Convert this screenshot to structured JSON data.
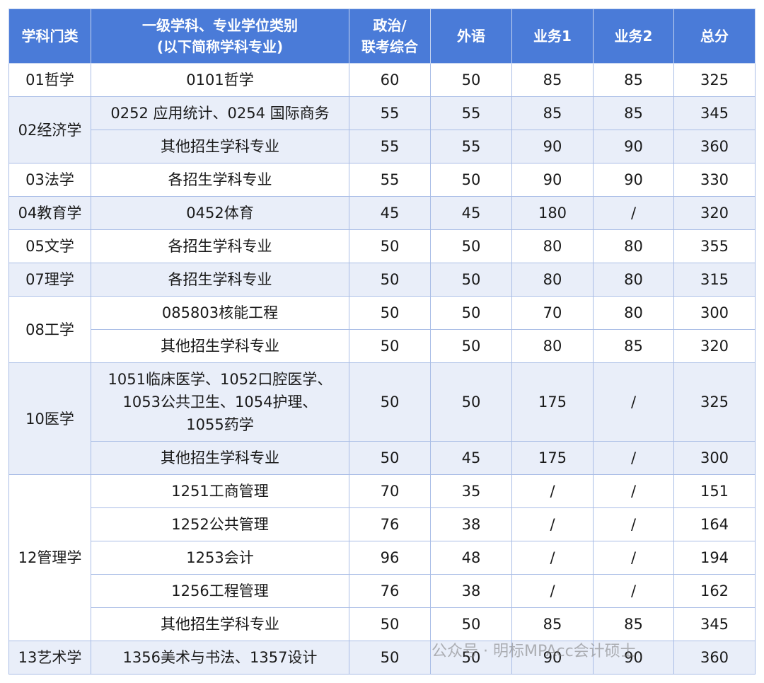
{
  "table": {
    "header": [
      "学科门类",
      "一级学科、专业学位类别\n(以下简称学科专业)",
      "政治/\n联考综合",
      "外语",
      "业务1",
      "业务2",
      "总分"
    ],
    "groups": [
      {
        "category": "01哲学",
        "rows": [
          [
            "0101哲学",
            60,
            50,
            85,
            85,
            325
          ]
        ]
      },
      {
        "category": "02经济学",
        "rows": [
          [
            "0252 应用统计、0254 国际商务",
            55,
            55,
            85,
            85,
            345
          ],
          [
            "其他招生学科专业",
            55,
            55,
            90,
            90,
            360
          ]
        ]
      },
      {
        "category": "03法学",
        "rows": [
          [
            "各招生学科专业",
            55,
            50,
            90,
            90,
            330
          ]
        ]
      },
      {
        "category": "04教育学",
        "rows": [
          [
            "0452体育",
            45,
            45,
            180,
            "/",
            320
          ]
        ]
      },
      {
        "category": "05文学",
        "rows": [
          [
            "各招生学科专业",
            50,
            50,
            80,
            80,
            355
          ]
        ]
      },
      {
        "category": "07理学",
        "rows": [
          [
            "各招生学科专业",
            50,
            50,
            80,
            80,
            315
          ]
        ]
      },
      {
        "category": "08工学",
        "rows": [
          [
            "085803核能工程",
            50,
            50,
            70,
            80,
            300
          ],
          [
            "其他招生学科专业",
            50,
            50,
            80,
            85,
            320
          ]
        ]
      },
      {
        "category": "10医学",
        "rows": [
          [
            "1051临床医学、1052口腔医学、\n1053公共卫生、1054护理、\n1055药学",
            50,
            50,
            175,
            "/",
            325
          ],
          [
            "其他招生学科专业",
            50,
            45,
            175,
            "/",
            300
          ]
        ]
      },
      {
        "category": "12管理学",
        "rows": [
          [
            "1251工商管理",
            70,
            35,
            "/",
            "/",
            151
          ],
          [
            "1252公共管理",
            76,
            38,
            "/",
            "/",
            164
          ],
          [
            "1253会计",
            96,
            48,
            "/",
            "/",
            194
          ],
          [
            "1256工程管理",
            76,
            38,
            "/",
            "/",
            162
          ],
          [
            "其他招生学科专业",
            50,
            50,
            85,
            85,
            345
          ]
        ]
      },
      {
        "category": "13艺术学",
        "rows": [
          [
            "1356美术与书法、1357设计",
            50,
            50,
            90,
            90,
            360
          ]
        ]
      }
    ]
  },
  "watermark": "公众号 · 明标MPAcc会计硕士"
}
